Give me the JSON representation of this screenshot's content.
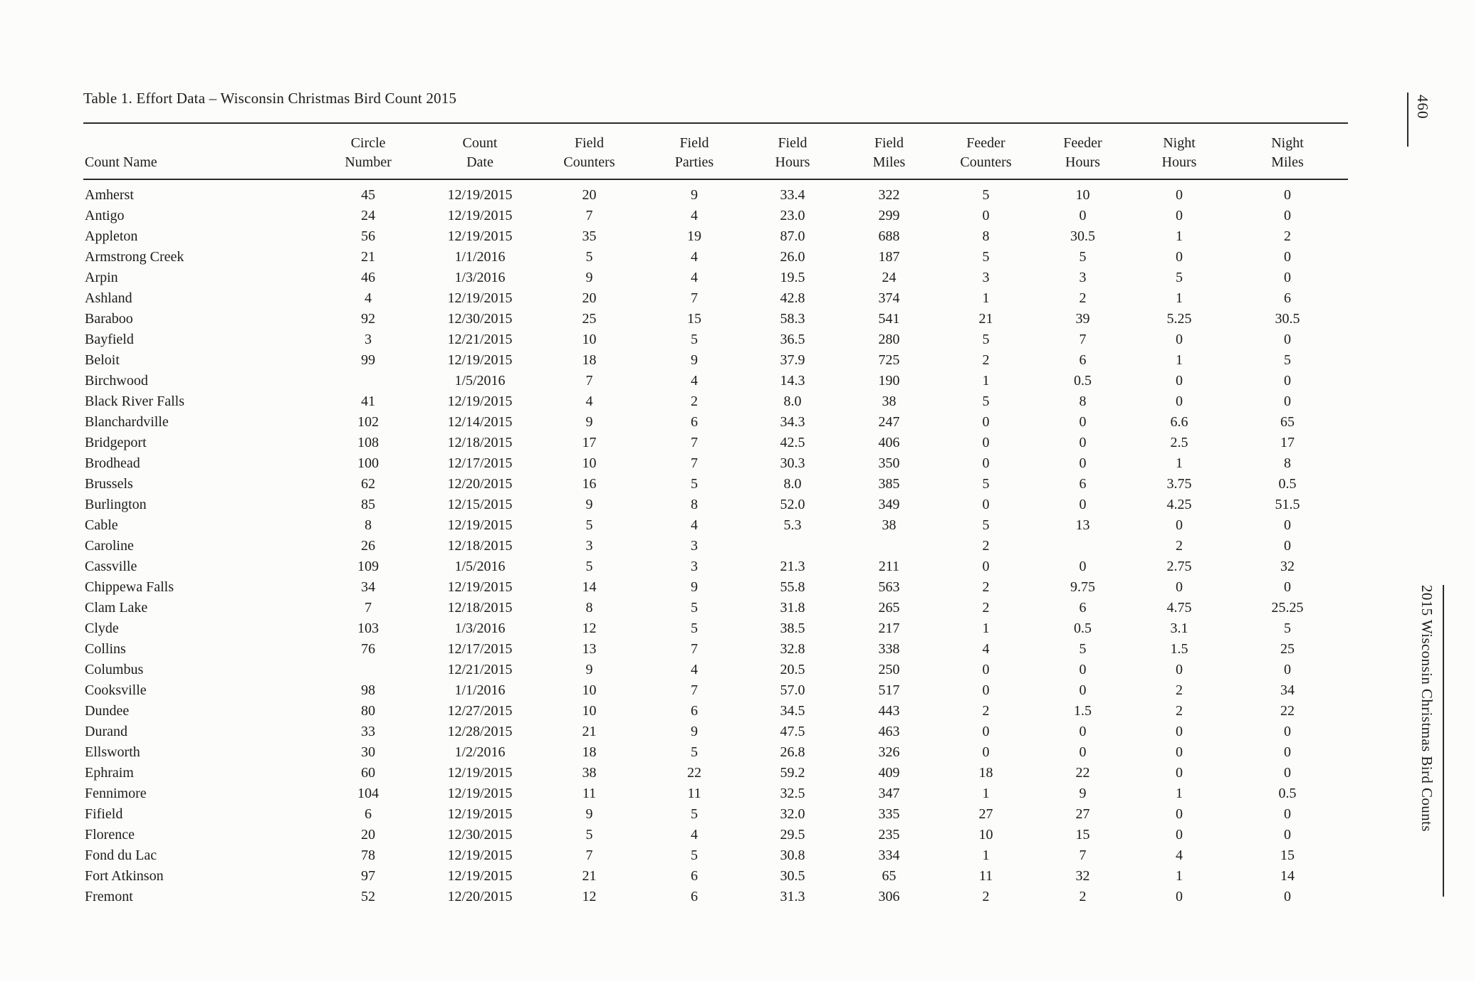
{
  "page": {
    "title": "Table 1. Effort Data – Wisconsin Christmas Bird Count 2015",
    "page_number": "460",
    "running_title": "2015 Wisconsin Christmas Bird Counts"
  },
  "table": {
    "columns": [
      {
        "line1": "",
        "line2": "Count Name"
      },
      {
        "line1": "Circle",
        "line2": "Number"
      },
      {
        "line1": "Count",
        "line2": "Date"
      },
      {
        "line1": "Field",
        "line2": "Counters"
      },
      {
        "line1": "Field",
        "line2": "Parties"
      },
      {
        "line1": "Field",
        "line2": "Hours"
      },
      {
        "line1": "Field",
        "line2": "Miles"
      },
      {
        "line1": "Feeder",
        "line2": "Counters"
      },
      {
        "line1": "Feeder",
        "line2": "Hours"
      },
      {
        "line1": "Night",
        "line2": "Hours"
      },
      {
        "line1": "Night",
        "line2": "Miles"
      }
    ],
    "rows": [
      [
        "Amherst",
        "45",
        "12/19/2015",
        "20",
        "9",
        "33.4",
        "322",
        "5",
        "10",
        "0",
        "0"
      ],
      [
        "Antigo",
        "24",
        "12/19/2015",
        "7",
        "4",
        "23.0",
        "299",
        "0",
        "0",
        "0",
        "0"
      ],
      [
        "Appleton",
        "56",
        "12/19/2015",
        "35",
        "19",
        "87.0",
        "688",
        "8",
        "30.5",
        "1",
        "2"
      ],
      [
        "Armstrong Creek",
        "21",
        "1/1/2016",
        "5",
        "4",
        "26.0",
        "187",
        "5",
        "5",
        "0",
        "0"
      ],
      [
        "Arpin",
        "46",
        "1/3/2016",
        "9",
        "4",
        "19.5",
        "24",
        "3",
        "3",
        "5",
        "0"
      ],
      [
        "Ashland",
        "4",
        "12/19/2015",
        "20",
        "7",
        "42.8",
        "374",
        "1",
        "2",
        "1",
        "6"
      ],
      [
        "Baraboo",
        "92",
        "12/30/2015",
        "25",
        "15",
        "58.3",
        "541",
        "21",
        "39",
        "5.25",
        "30.5"
      ],
      [
        "Bayfield",
        "3",
        "12/21/2015",
        "10",
        "5",
        "36.5",
        "280",
        "5",
        "7",
        "0",
        "0"
      ],
      [
        "Beloit",
        "99",
        "12/19/2015",
        "18",
        "9",
        "37.9",
        "725",
        "2",
        "6",
        "1",
        "5"
      ],
      [
        "Birchwood",
        "",
        "1/5/2016",
        "7",
        "4",
        "14.3",
        "190",
        "1",
        "0.5",
        "0",
        "0"
      ],
      [
        "Black River Falls",
        "41",
        "12/19/2015",
        "4",
        "2",
        "8.0",
        "38",
        "5",
        "8",
        "0",
        "0"
      ],
      [
        "Blanchardville",
        "102",
        "12/14/2015",
        "9",
        "6",
        "34.3",
        "247",
        "0",
        "0",
        "6.6",
        "65"
      ],
      [
        "Bridgeport",
        "108",
        "12/18/2015",
        "17",
        "7",
        "42.5",
        "406",
        "0",
        "0",
        "2.5",
        "17"
      ],
      [
        "Brodhead",
        "100",
        "12/17/2015",
        "10",
        "7",
        "30.3",
        "350",
        "0",
        "0",
        "1",
        "8"
      ],
      [
        "Brussels",
        "62",
        "12/20/2015",
        "16",
        "5",
        "8.0",
        "385",
        "5",
        "6",
        "3.75",
        "0.5"
      ],
      [
        "Burlington",
        "85",
        "12/15/2015",
        "9",
        "8",
        "52.0",
        "349",
        "0",
        "0",
        "4.25",
        "51.5"
      ],
      [
        "Cable",
        "8",
        "12/19/2015",
        "5",
        "4",
        "5.3",
        "38",
        "5",
        "13",
        "0",
        "0"
      ],
      [
        "Caroline",
        "26",
        "12/18/2015",
        "3",
        "3",
        "",
        "",
        "2",
        "",
        "2",
        "0"
      ],
      [
        "Cassville",
        "109",
        "1/5/2016",
        "5",
        "3",
        "21.3",
        "211",
        "0",
        "0",
        "2.75",
        "32"
      ],
      [
        "Chippewa Falls",
        "34",
        "12/19/2015",
        "14",
        "9",
        "55.8",
        "563",
        "2",
        "9.75",
        "0",
        "0"
      ],
      [
        "Clam Lake",
        "7",
        "12/18/2015",
        "8",
        "5",
        "31.8",
        "265",
        "2",
        "6",
        "4.75",
        "25.25"
      ],
      [
        "Clyde",
        "103",
        "1/3/2016",
        "12",
        "5",
        "38.5",
        "217",
        "1",
        "0.5",
        "3.1",
        "5"
      ],
      [
        "Collins",
        "76",
        "12/17/2015",
        "13",
        "7",
        "32.8",
        "338",
        "4",
        "5",
        "1.5",
        "25"
      ],
      [
        "Columbus",
        "",
        "12/21/2015",
        "9",
        "4",
        "20.5",
        "250",
        "0",
        "0",
        "0",
        "0"
      ],
      [
        "Cooksville",
        "98",
        "1/1/2016",
        "10",
        "7",
        "57.0",
        "517",
        "0",
        "0",
        "2",
        "34"
      ],
      [
        "Dundee",
        "80",
        "12/27/2015",
        "10",
        "6",
        "34.5",
        "443",
        "2",
        "1.5",
        "2",
        "22"
      ],
      [
        "Durand",
        "33",
        "12/28/2015",
        "21",
        "9",
        "47.5",
        "463",
        "0",
        "0",
        "0",
        "0"
      ],
      [
        "Ellsworth",
        "30",
        "1/2/2016",
        "18",
        "5",
        "26.8",
        "326",
        "0",
        "0",
        "0",
        "0"
      ],
      [
        "Ephraim",
        "60",
        "12/19/2015",
        "38",
        "22",
        "59.2",
        "409",
        "18",
        "22",
        "0",
        "0"
      ],
      [
        "Fennimore",
        "104",
        "12/19/2015",
        "11",
        "11",
        "32.5",
        "347",
        "1",
        "9",
        "1",
        "0.5"
      ],
      [
        "Fifield",
        "6",
        "12/19/2015",
        "9",
        "5",
        "32.0",
        "335",
        "27",
        "27",
        "0",
        "0"
      ],
      [
        "Florence",
        "20",
        "12/30/2015",
        "5",
        "4",
        "29.5",
        "235",
        "10",
        "15",
        "0",
        "0"
      ],
      [
        "Fond du Lac",
        "78",
        "12/19/2015",
        "7",
        "5",
        "30.8",
        "334",
        "1",
        "7",
        "4",
        "15"
      ],
      [
        "Fort Atkinson",
        "97",
        "12/19/2015",
        "21",
        "6",
        "30.5",
        "65",
        "11",
        "32",
        "1",
        "14"
      ],
      [
        "Fremont",
        "52",
        "12/20/2015",
        "12",
        "6",
        "31.3",
        "306",
        "2",
        "2",
        "0",
        "0"
      ]
    ]
  }
}
